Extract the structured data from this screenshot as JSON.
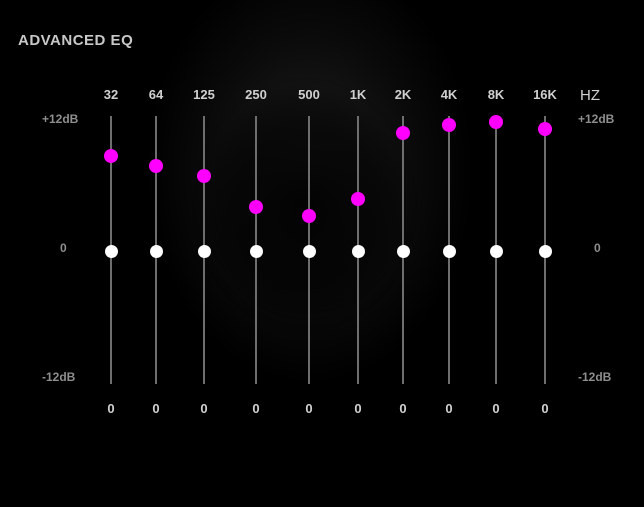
{
  "panel": {
    "title": "ADVANCED EQ",
    "unit": "HZ"
  },
  "scale": {
    "top": "+12dB",
    "middle": "0",
    "bottom": "-12dB",
    "max_db": 12,
    "min_db": -12
  },
  "bands": [
    {
      "freq": "32",
      "value": "0",
      "gain_db": 8.7
    },
    {
      "freq": "64",
      "value": "0",
      "gain_db": 7.8
    },
    {
      "freq": "125",
      "value": "0",
      "gain_db": 6.9
    },
    {
      "freq": "250",
      "value": "0",
      "gain_db": 4.0
    },
    {
      "freq": "500",
      "value": "0",
      "gain_db": 3.2
    },
    {
      "freq": "1K",
      "value": "0",
      "gain_db": 4.8
    },
    {
      "freq": "2K",
      "value": "0",
      "gain_db": 10.8
    },
    {
      "freq": "4K",
      "value": "0",
      "gain_db": 11.5
    },
    {
      "freq": "8K",
      "value": "0",
      "gain_db": 11.8
    },
    {
      "freq": "16K",
      "value": "0",
      "gain_db": 11.2
    }
  ],
  "colors": {
    "gain_handle": "#ff00ff",
    "zero_handle": "#ffffff",
    "track": "#6e6e6e",
    "background": "#000000"
  }
}
